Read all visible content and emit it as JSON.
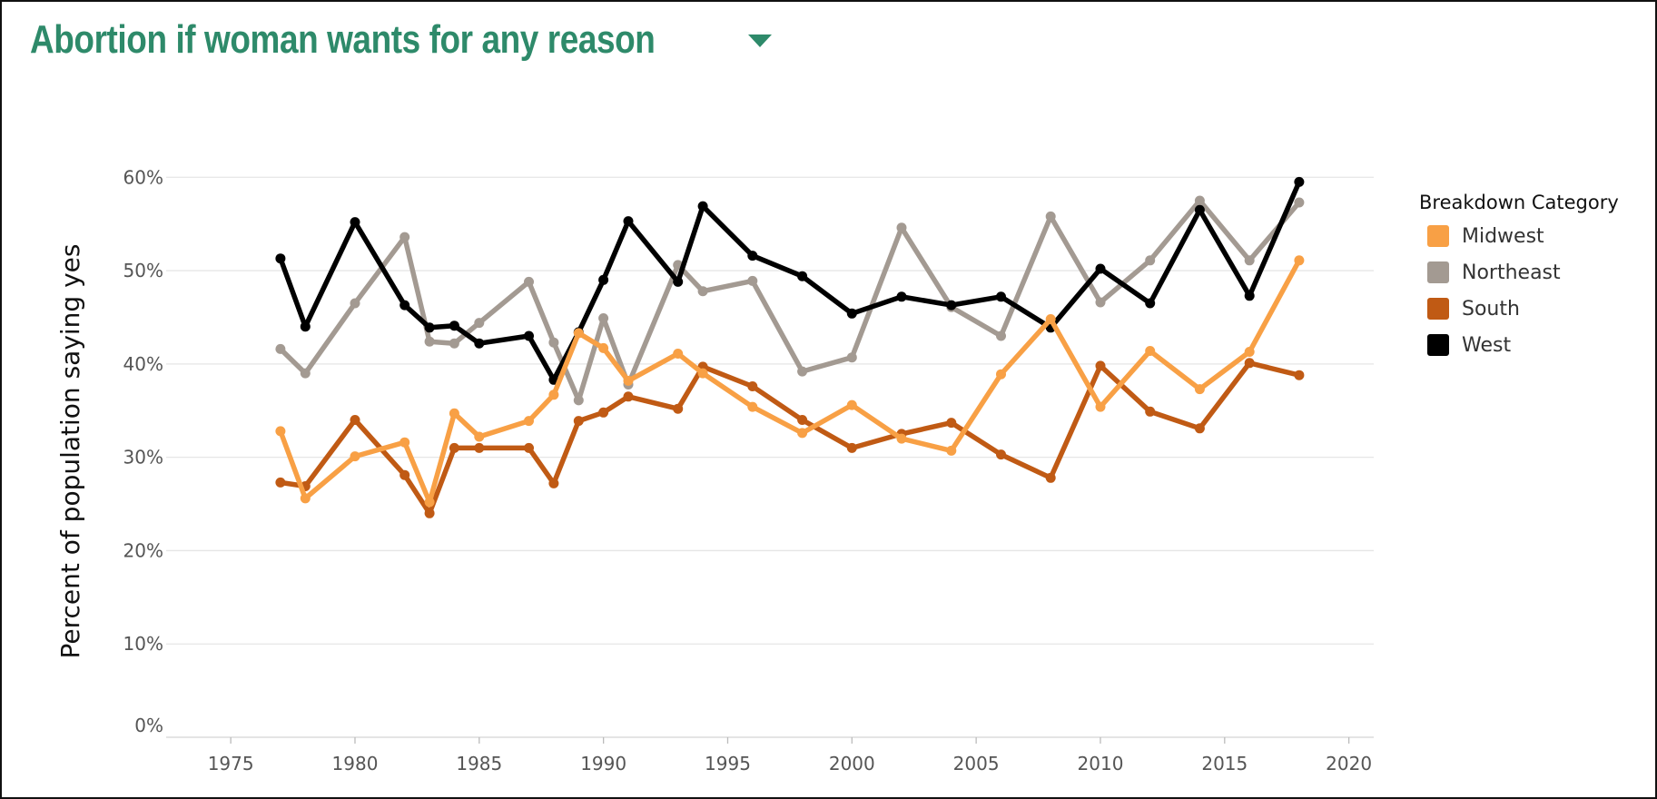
{
  "header": {
    "title": "Abortion if woman wants for any reason",
    "dropdown_icon": "caret-down-icon"
  },
  "legend": {
    "title": "Breakdown Category"
  },
  "chart_data": {
    "type": "line",
    "title": "Abortion if woman wants for any reason",
    "xlabel": "",
    "ylabel": "Percent of population saying yes",
    "xlim": [
      1972.4,
      2021.0
    ],
    "ylim": [
      0,
      61
    ],
    "x_ticks": [
      1975,
      1980,
      1985,
      1990,
      1995,
      2000,
      2005,
      2010,
      2015,
      2020
    ],
    "y_ticks": [
      0,
      10,
      20,
      30,
      40,
      50,
      60
    ],
    "y_tick_labels": [
      "0%",
      "10%",
      "20%",
      "30%",
      "40%",
      "50%",
      "60%"
    ],
    "grid": "horizontal",
    "legend_position": "right",
    "series": [
      {
        "name": "Northeast",
        "color": "#a39a92",
        "points": [
          [
            1977,
            41.6
          ],
          [
            1978,
            39.0
          ],
          [
            1980,
            46.5
          ],
          [
            1982,
            53.6
          ],
          [
            1983,
            42.4
          ],
          [
            1984,
            42.2
          ],
          [
            1985,
            44.4
          ],
          [
            1987,
            48.8
          ],
          [
            1988,
            42.3
          ],
          [
            1989,
            36.1
          ],
          [
            1990,
            44.9
          ],
          [
            1991,
            37.8
          ],
          [
            1993,
            50.6
          ],
          [
            1994,
            47.8
          ],
          [
            1996,
            48.9
          ],
          [
            1998,
            39.2
          ],
          [
            2000,
            40.7
          ],
          [
            2002,
            54.6
          ],
          [
            2004,
            46.1
          ],
          [
            2006,
            43.0
          ],
          [
            2008,
            55.8
          ],
          [
            2010,
            46.6
          ],
          [
            2012,
            51.1
          ],
          [
            2014,
            57.5
          ],
          [
            2016,
            51.1
          ],
          [
            2018,
            57.3
          ]
        ]
      },
      {
        "name": "West",
        "color": "#000000",
        "points": [
          [
            1977,
            51.3
          ],
          [
            1978,
            44.0
          ],
          [
            1980,
            55.2
          ],
          [
            1982,
            46.3
          ],
          [
            1983,
            43.9
          ],
          [
            1984,
            44.1
          ],
          [
            1985,
            42.2
          ],
          [
            1987,
            43.0
          ],
          [
            1988,
            38.3
          ],
          [
            1989,
            43.4
          ],
          [
            1990,
            49.0
          ],
          [
            1991,
            55.3
          ],
          [
            1993,
            48.8
          ],
          [
            1994,
            56.9
          ],
          [
            1996,
            51.6
          ],
          [
            1998,
            49.4
          ],
          [
            2000,
            45.4
          ],
          [
            2002,
            47.2
          ],
          [
            2004,
            46.3
          ],
          [
            2006,
            47.2
          ],
          [
            2008,
            43.9
          ],
          [
            2010,
            50.2
          ],
          [
            2012,
            46.5
          ],
          [
            2014,
            56.5
          ],
          [
            2016,
            47.3
          ],
          [
            2018,
            59.5
          ]
        ]
      },
      {
        "name": "South",
        "color": "#c05a14",
        "points": [
          [
            1977,
            27.3
          ],
          [
            1978,
            26.9
          ],
          [
            1980,
            34.0
          ],
          [
            1982,
            28.1
          ],
          [
            1983,
            24.0
          ],
          [
            1984,
            31.0
          ],
          [
            1985,
            31.0
          ],
          [
            1987,
            31.0
          ],
          [
            1988,
            27.2
          ],
          [
            1989,
            33.9
          ],
          [
            1990,
            34.8
          ],
          [
            1991,
            36.5
          ],
          [
            1993,
            35.2
          ],
          [
            1994,
            39.7
          ],
          [
            1996,
            37.6
          ],
          [
            1998,
            34.0
          ],
          [
            2000,
            31.0
          ],
          [
            2002,
            32.5
          ],
          [
            2004,
            33.7
          ],
          [
            2006,
            30.3
          ],
          [
            2008,
            27.8
          ],
          [
            2010,
            39.8
          ],
          [
            2012,
            34.9
          ],
          [
            2014,
            33.1
          ],
          [
            2016,
            40.1
          ],
          [
            2018,
            38.8
          ]
        ]
      },
      {
        "name": "Midwest",
        "color": "#f8a045",
        "points": [
          [
            1977,
            32.8
          ],
          [
            1978,
            25.6
          ],
          [
            1980,
            30.1
          ],
          [
            1982,
            31.6
          ],
          [
            1983,
            25.2
          ],
          [
            1984,
            34.7
          ],
          [
            1985,
            32.2
          ],
          [
            1987,
            33.9
          ],
          [
            1988,
            36.7
          ],
          [
            1989,
            43.3
          ],
          [
            1990,
            41.7
          ],
          [
            1991,
            38.2
          ],
          [
            1993,
            41.1
          ],
          [
            1994,
            39.0
          ],
          [
            1996,
            35.4
          ],
          [
            1998,
            32.6
          ],
          [
            2000,
            35.6
          ],
          [
            2002,
            32.0
          ],
          [
            2004,
            30.7
          ],
          [
            2006,
            38.9
          ],
          [
            2008,
            44.8
          ],
          [
            2010,
            35.4
          ],
          [
            2012,
            41.4
          ],
          [
            2014,
            37.3
          ],
          [
            2016,
            41.3
          ],
          [
            2018,
            51.1
          ]
        ]
      }
    ],
    "legend_order": [
      "Midwest",
      "Northeast",
      "South",
      "West"
    ]
  }
}
